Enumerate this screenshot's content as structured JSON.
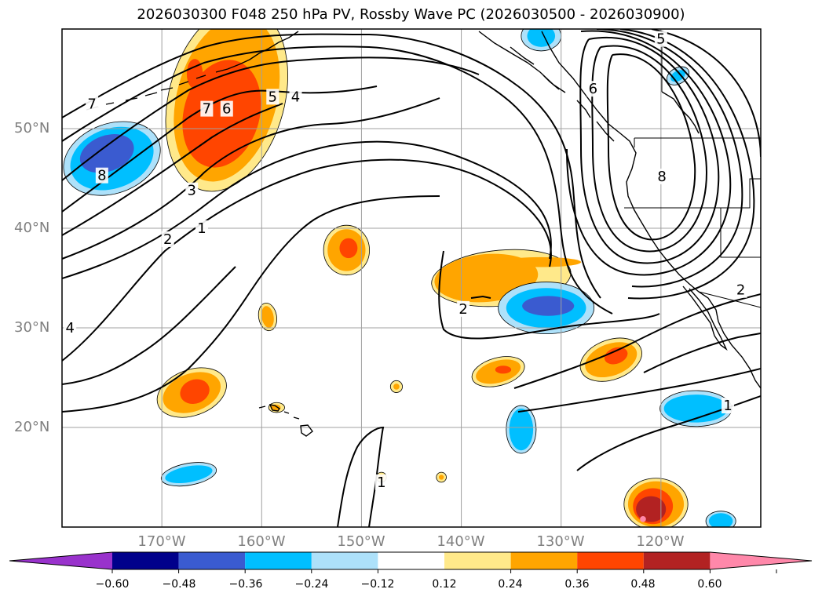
{
  "title": "2026030300 F048 250 hPa PV, Rossby Wave PC (2026030500 - 2026030900)",
  "map": {
    "lon_range": [
      -180,
      -110
    ],
    "lat_range": [
      10,
      60
    ],
    "lat_ticks": [
      {
        "value": 50,
        "label": "50°N"
      },
      {
        "value": 40,
        "label": "40°N"
      },
      {
        "value": 30,
        "label": "30°N"
      },
      {
        "value": 20,
        "label": "20°N"
      }
    ],
    "lon_ticks": [
      {
        "value": -170,
        "label": "170°W"
      },
      {
        "value": -160,
        "label": "160°W"
      },
      {
        "value": -150,
        "label": "150°W"
      },
      {
        "value": -140,
        "label": "140°W"
      },
      {
        "value": -130,
        "label": "130°W"
      },
      {
        "value": -120,
        "label": "120°W"
      }
    ]
  },
  "colorbar": {
    "colors": [
      "#9932CC",
      "#00008B",
      "#3A5BD0",
      "#00BFFF",
      "#ADE1FA",
      "#FFFFFF",
      "#FFE98A",
      "#FFA500",
      "#FF4500",
      "#B22222",
      "#FF88AA"
    ],
    "ticks": [
      "−0.60",
      "−0.48",
      "−0.36",
      "−0.24",
      "−0.12",
      "0.12",
      "0.24",
      "0.36",
      "0.48",
      "0.60"
    ]
  },
  "contour_labels": [
    {
      "text": "7",
      "lon": -177,
      "lat": 52.5
    },
    {
      "text": "8",
      "lon": -176,
      "lat": 45.3
    },
    {
      "text": "4",
      "lon": -179.2,
      "lat": 30
    },
    {
      "text": "7",
      "lon": -165.5,
      "lat": 52
    },
    {
      "text": "6",
      "lon": -163.5,
      "lat": 52
    },
    {
      "text": "5",
      "lon": -158.9,
      "lat": 53.2
    },
    {
      "text": "4",
      "lon": -156.6,
      "lat": 53.2
    },
    {
      "text": "3",
      "lon": -167,
      "lat": 43.8
    },
    {
      "text": "2",
      "lon": -169.4,
      "lat": 38.9
    },
    {
      "text": "1",
      "lon": -166,
      "lat": 40
    },
    {
      "text": "5",
      "lon": -120,
      "lat": 59
    },
    {
      "text": "6",
      "lon": -126.8,
      "lat": 54
    },
    {
      "text": "8",
      "lon": -119.9,
      "lat": 45.2
    },
    {
      "text": "2",
      "lon": -139.8,
      "lat": 31.9
    },
    {
      "text": "2",
      "lon": -112,
      "lat": 33.8
    },
    {
      "text": "1",
      "lon": -113.3,
      "lat": 22.2
    },
    {
      "text": "1",
      "lon": -148,
      "lat": 14.5
    }
  ],
  "anomaly_blobs": [
    {
      "value": 0.36,
      "lon": -164.5,
      "lat": 51,
      "rlon": 4.5,
      "rlat": 7,
      "rot": 15
    },
    {
      "value": 0.12,
      "lon": -163.5,
      "lat": 53,
      "rlon": 5.8,
      "rlat": 9.5,
      "rot": 15
    },
    {
      "value": 0.24,
      "lon": -163.5,
      "lat": 53,
      "rlon": 5.0,
      "rlat": 8.5,
      "rot": 15
    },
    {
      "value": 0.36,
      "lon": -164,
      "lat": 51.5,
      "rlon": 3.8,
      "rlat": 5.5,
      "rot": 15
    },
    {
      "value": 0.36,
      "lon": -166.7,
      "lat": 55.5,
      "rlon": 0.8,
      "rlat": 1.5,
      "rot": 0
    },
    {
      "value": -0.12,
      "lon": -175,
      "lat": 47,
      "rlon": 5.0,
      "rlat": 3.5,
      "rot": -20
    },
    {
      "value": -0.24,
      "lon": -175,
      "lat": 47,
      "rlon": 4.3,
      "rlat": 3.0,
      "rot": -20
    },
    {
      "value": -0.36,
      "lon": -175.5,
      "lat": 47.5,
      "rlon": 2.8,
      "rlat": 1.8,
      "rot": -20
    },
    {
      "value": 0.12,
      "lon": -151.5,
      "lat": 37.8,
      "rlon": 2.3,
      "rlat": 2.5,
      "rot": 0
    },
    {
      "value": 0.24,
      "lon": -151.5,
      "lat": 37.8,
      "rlon": 1.9,
      "rlat": 2.1,
      "rot": 0
    },
    {
      "value": 0.36,
      "lon": -151.3,
      "lat": 38,
      "rlon": 0.9,
      "rlat": 1.0,
      "rot": 0
    },
    {
      "value": 0.12,
      "lon": -136,
      "lat": 35,
      "rlon": 7.0,
      "rlat": 2.8,
      "rot": -5
    },
    {
      "value": 0.24,
      "lon": -137.5,
      "lat": 35,
      "rlon": 5.2,
      "rlat": 2.4,
      "rot": -5
    },
    {
      "value": 0.24,
      "lon": -132,
      "lat": 36.6,
      "rlon": 4.0,
      "rlat": 0.5,
      "rot": 0
    },
    {
      "value": -0.12,
      "lon": -131.5,
      "lat": 32,
      "rlon": 4.8,
      "rlat": 2.6,
      "rot": 0
    },
    {
      "value": -0.24,
      "lon": -131.5,
      "lat": 32,
      "rlon": 4.0,
      "rlat": 2.0,
      "rot": 0
    },
    {
      "value": -0.36,
      "lon": -131.3,
      "lat": 32.2,
      "rlon": 2.6,
      "rlat": 1.0,
      "rot": 0
    },
    {
      "value": 0.12,
      "lon": -125,
      "lat": 26.8,
      "rlon": 3.2,
      "rlat": 2.0,
      "rot": -20
    },
    {
      "value": 0.24,
      "lon": -125,
      "lat": 26.8,
      "rlon": 2.7,
      "rlat": 1.6,
      "rot": -20
    },
    {
      "value": 0.36,
      "lon": -124.5,
      "lat": 27.2,
      "rlon": 1.2,
      "rlat": 0.8,
      "rot": -20
    },
    {
      "value": 0.12,
      "lon": -136.3,
      "lat": 25.6,
      "rlon": 2.7,
      "rlat": 1.4,
      "rot": -15
    },
    {
      "value": 0.24,
      "lon": -136.3,
      "lat": 25.6,
      "rlon": 2.3,
      "rlat": 1.1,
      "rot": -15
    },
    {
      "value": 0.36,
      "lon": -135.8,
      "lat": 25.8,
      "rlon": 0.8,
      "rlat": 0.4,
      "rot": 0
    },
    {
      "value": 0.12,
      "lon": -167,
      "lat": 23.5,
      "rlon": 3.6,
      "rlat": 2.3,
      "rot": -20
    },
    {
      "value": 0.24,
      "lon": -167,
      "lat": 23.5,
      "rlon": 3.0,
      "rlat": 1.9,
      "rot": -20
    },
    {
      "value": 0.36,
      "lon": -166.7,
      "lat": 23.6,
      "rlon": 1.5,
      "rlat": 1.2,
      "rot": -20
    },
    {
      "value": -0.12,
      "lon": -134,
      "lat": 19.8,
      "rlon": 1.5,
      "rlat": 2.4,
      "rot": 0
    },
    {
      "value": -0.24,
      "lon": -134,
      "lat": 19.8,
      "rlon": 1.2,
      "rlat": 2.1,
      "rot": 0
    },
    {
      "value": -0.12,
      "lon": -116.5,
      "lat": 21.9,
      "rlon": 3.6,
      "rlat": 1.8,
      "rot": 0
    },
    {
      "value": -0.24,
      "lon": -116.5,
      "lat": 21.9,
      "rlon": 3.2,
      "rlat": 1.4,
      "rot": 0
    },
    {
      "value": -0.12,
      "lon": -167.3,
      "lat": 15.3,
      "rlon": 2.8,
      "rlat": 1.1,
      "rot": -10
    },
    {
      "value": -0.24,
      "lon": -167.3,
      "lat": 15.3,
      "rlon": 2.4,
      "rlat": 0.8,
      "rot": -10
    },
    {
      "value": 0.12,
      "lon": -120.5,
      "lat": 12.3,
      "rlon": 3.2,
      "rlat": 2.6,
      "rot": 0
    },
    {
      "value": 0.24,
      "lon": -120.5,
      "lat": 12.3,
      "rlon": 2.8,
      "rlat": 2.3,
      "rot": 0
    },
    {
      "value": 0.36,
      "lon": -120.8,
      "lat": 12.1,
      "rlon": 2.0,
      "rlat": 1.8,
      "rot": 0
    },
    {
      "value": 0.48,
      "lon": -121,
      "lat": 11.8,
      "rlon": 1.5,
      "rlat": 1.3,
      "rot": 0
    },
    {
      "value": 0.6,
      "lon": -121.8,
      "lat": 10.8,
      "rlon": 0.3,
      "rlat": 0.3,
      "rot": 0
    },
    {
      "value": 0.12,
      "lon": -159.4,
      "lat": 31.1,
      "rlon": 0.9,
      "rlat": 1.4,
      "rot": -10
    },
    {
      "value": 0.24,
      "lon": -159.4,
      "lat": 31.1,
      "rlon": 0.6,
      "rlat": 1.1,
      "rot": -10
    },
    {
      "value": 0.12,
      "lon": -158.5,
      "lat": 22,
      "rlon": 0.8,
      "rlat": 0.5,
      "rot": 0
    },
    {
      "value": 0.24,
      "lon": -158.6,
      "lat": 22,
      "rlon": 0.5,
      "rlat": 0.3,
      "rot": 0
    },
    {
      "value": 0.12,
      "lon": -146.5,
      "lat": 24.1,
      "rlon": 0.6,
      "rlat": 0.6,
      "rot": 45
    },
    {
      "value": 0.24,
      "lon": -146.5,
      "lat": 24.1,
      "rlon": 0.3,
      "rlat": 0.3,
      "rot": 45
    },
    {
      "value": 0.12,
      "lon": -148,
      "lat": 15,
      "rlon": 0.5,
      "rlat": 0.5,
      "rot": 45
    },
    {
      "value": 0.24,
      "lon": -148,
      "lat": 15,
      "rlon": 0.25,
      "rlat": 0.25,
      "rot": 45
    },
    {
      "value": 0.12,
      "lon": -142,
      "lat": 15,
      "rlon": 0.5,
      "rlat": 0.5,
      "rot": 45
    },
    {
      "value": 0.24,
      "lon": -142,
      "lat": 15,
      "rlon": 0.25,
      "rlat": 0.25,
      "rot": 45
    },
    {
      "value": -0.12,
      "lon": -118.3,
      "lat": 55.3,
      "rlon": 1.2,
      "rlat": 0.8,
      "rot": -30
    },
    {
      "value": -0.24,
      "lon": -118.3,
      "lat": 55.3,
      "rlon": 0.8,
      "rlat": 0.5,
      "rot": -30
    },
    {
      "value": -0.12,
      "lon": -132,
      "lat": 59.3,
      "rlon": 2.0,
      "rlat": 1.5,
      "rot": 0
    },
    {
      "value": -0.24,
      "lon": -132,
      "lat": 59.3,
      "rlon": 1.4,
      "rlat": 1.1,
      "rot": 0
    },
    {
      "value": -0.12,
      "lon": -114,
      "lat": 10.6,
      "rlon": 1.5,
      "rlat": 1.0,
      "rot": 0
    },
    {
      "value": -0.24,
      "lon": -114,
      "lat": 10.6,
      "rlon": 1.2,
      "rlat": 0.8,
      "rot": 0
    }
  ]
}
